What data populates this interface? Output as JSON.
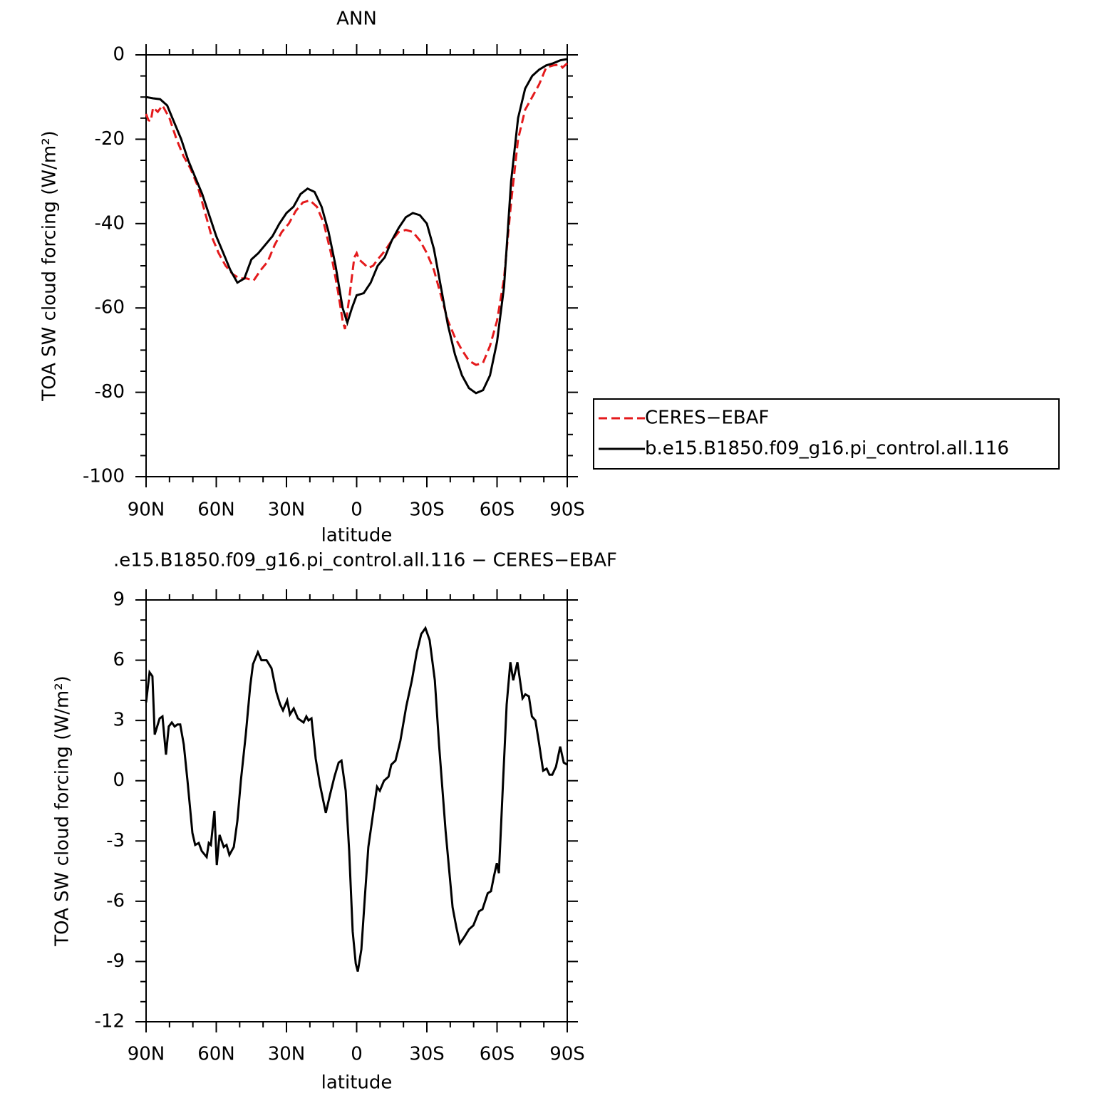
{
  "chart_data": [
    {
      "type": "line",
      "title": "ANN",
      "xlabel": "latitude",
      "ylabel": "TOA SW cloud forcing (W/m²)",
      "xlim": [
        90,
        -90
      ],
      "xticks": [
        {
          "value": 90,
          "label": "90N"
        },
        {
          "value": 60,
          "label": "60N"
        },
        {
          "value": 30,
          "label": "30N"
        },
        0,
        {
          "value": -30,
          "label": "30S"
        },
        {
          "value": -60,
          "label": "60S"
        },
        {
          "value": -90,
          "label": "90S"
        }
      ],
      "ylim": [
        -100,
        0
      ],
      "yticks": [
        -100,
        -80,
        -60,
        -40,
        -20,
        0
      ],
      "legend": true,
      "series": [
        {
          "name": "CERES−EBAF",
          "color": "#e41a1c",
          "style": "dashed",
          "x": [
            90,
            89,
            88,
            87,
            85,
            83,
            80,
            77,
            74,
            71,
            68,
            65,
            62,
            59,
            56,
            53,
            50,
            47,
            44,
            41,
            38,
            35,
            32,
            29,
            26,
            23,
            20,
            17,
            14,
            11,
            8,
            6,
            5,
            3,
            1,
            0,
            -1,
            -3,
            -5,
            -7,
            -9,
            -12,
            -15,
            -18,
            -21,
            -24,
            -27,
            -30,
            -33,
            -36,
            -39,
            -42,
            -45,
            -48,
            -51,
            -54,
            -57,
            -60,
            -63,
            -66,
            -69,
            -72,
            -75,
            -78,
            -81,
            -84,
            -87,
            -88,
            -90
          ],
          "values": [
            -14,
            -15.5,
            -15.7,
            -12.5,
            -13.5,
            -12,
            -15,
            -20,
            -24,
            -27,
            -31,
            -37,
            -43,
            -47,
            -50,
            -52,
            -53,
            -53,
            -53.5,
            -51,
            -49,
            -45,
            -42,
            -40,
            -37,
            -35,
            -34.5,
            -36,
            -40,
            -47,
            -56,
            -63,
            -65,
            -57,
            -48,
            -47,
            -48.5,
            -49.5,
            -50.5,
            -50,
            -48.5,
            -46.5,
            -44,
            -42,
            -41.5,
            -42,
            -44,
            -47,
            -51,
            -57,
            -63,
            -67,
            -70,
            -72.5,
            -73.5,
            -73,
            -69,
            -63,
            -53,
            -35,
            -20,
            -13,
            -10,
            -7,
            -3,
            -2.5,
            -2.3,
            -3,
            -2
          ]
        },
        {
          "name": "b.e15.B1850.f09_g16.pi_control.all.116",
          "color": "#000000",
          "style": "solid",
          "x": [
            90,
            87,
            84,
            81,
            78,
            75,
            72,
            69,
            66,
            63,
            60,
            57,
            54,
            51,
            48,
            45,
            42,
            39,
            36,
            33,
            30,
            27,
            24,
            21,
            18,
            15,
            12,
            9,
            6,
            4,
            2,
            0,
            -3,
            -6,
            -9,
            -12,
            -15,
            -18,
            -21,
            -24,
            -27,
            -30,
            -33,
            -36,
            -39,
            -42,
            -45,
            -48,
            -51,
            -54,
            -57,
            -60,
            -63,
            -66,
            -69,
            -72,
            -75,
            -78,
            -81,
            -84,
            -87,
            -90
          ],
          "values": [
            -10,
            -10.3,
            -10.5,
            -12,
            -16,
            -20,
            -25,
            -29,
            -33,
            -38,
            -43,
            -47,
            -51,
            -54,
            -53,
            -48.5,
            -47,
            -45,
            -43,
            -40,
            -37.5,
            -36,
            -33,
            -31.7,
            -32.5,
            -36,
            -42,
            -50,
            -60,
            -63.5,
            -60,
            -57,
            -56.5,
            -54,
            -50,
            -48,
            -44,
            -41,
            -38.5,
            -37.5,
            -38,
            -40,
            -46,
            -55,
            -64,
            -71,
            -76,
            -79,
            -80.2,
            -79.5,
            -76,
            -68,
            -55,
            -30,
            -15,
            -8,
            -5,
            -3.5,
            -2.5,
            -2,
            -1.3,
            -1
          ]
        }
      ]
    },
    {
      "type": "line",
      "title": ".e15.B1850.f09_g16.pi_control.all.116 − CERES−EBAF",
      "xlabel": "latitude",
      "ylabel": "TOA SW cloud forcing (W/m²)",
      "xlim": [
        90,
        -90
      ],
      "xticks": [
        {
          "value": 90,
          "label": "90N"
        },
        {
          "value": 60,
          "label": "60N"
        },
        {
          "value": 30,
          "label": "30N"
        },
        0,
        {
          "value": -30,
          "label": "30S"
        },
        {
          "value": -60,
          "label": "60S"
        },
        {
          "value": -90,
          "label": "90S"
        }
      ],
      "ylim": [
        -12,
        9
      ],
      "yticks": [
        -12,
        -9,
        -6,
        -3,
        0,
        3,
        6,
        9
      ],
      "legend": false,
      "series": [
        {
          "color": "#000000",
          "style": "solid",
          "x": [
            90,
            88.5,
            87.3,
            86.3,
            84.2,
            83,
            81.5,
            80.3,
            79,
            77.8,
            76.6,
            75.4,
            73.9,
            72.3,
            71.1,
            70.2,
            69,
            67.5,
            66.2,
            64.1,
            63.2,
            62.3,
            60.8,
            59.8,
            58.6,
            56.8,
            55.6,
            54.4,
            52.5,
            51,
            49.5,
            47.4,
            45.5,
            44.3,
            42.2,
            40.7,
            38.5,
            36.4,
            34.3,
            32.7,
            31.5,
            29.7,
            28.5,
            26.9,
            25.1,
            22.7,
            21.5,
            20.6,
            19.3,
            17.5,
            15.7,
            13.2,
            11.4,
            9.5,
            7.7,
            6.5,
            4.7,
            3.2,
            1.7,
            0.4,
            -0.5,
            -2,
            -3.5,
            -5,
            -7.2,
            -8.7,
            -9.9,
            -11.7,
            -13.6,
            -14.8,
            -16.6,
            -18.7,
            -21.2,
            -23.6,
            -25.7,
            -27.6,
            -29.4,
            -31.2,
            -33.4,
            -35.2,
            -38,
            -41,
            -42.6,
            -44.1,
            -45.9,
            -48,
            -49.9,
            -52.3,
            -53.8,
            -56,
            -57.4,
            -58.6,
            -59.9,
            -60.8,
            -62.6,
            -64.1,
            -65.7,
            -66.9,
            -68.7,
            -70.9,
            -72.1,
            -73.6,
            -74.9,
            -76.4,
            -77.9,
            -79.7,
            -81.2,
            -82.4,
            -83.6,
            -85.2,
            -87,
            -88.5,
            -90
          ],
          "values": [
            3.9,
            5.4,
            5.2,
            2.3,
            3.1,
            3.2,
            1.3,
            2.7,
            2.9,
            2.7,
            2.8,
            2.8,
            1.8,
            0,
            -1.5,
            -2.6,
            -3.2,
            -3.1,
            -3.5,
            -3.8,
            -3.1,
            -3.2,
            -1.5,
            -4.2,
            -2.7,
            -3.3,
            -3.2,
            -3.7,
            -3.3,
            -2,
            0,
            2.3,
            4.7,
            5.8,
            6.4,
            6,
            6,
            5.6,
            4.4,
            3.8,
            3.5,
            4,
            3.3,
            3.6,
            3.1,
            2.9,
            3.2,
            3,
            3.1,
            1.1,
            -0.2,
            -1.6,
            -0.7,
            0.2,
            0.9,
            1,
            -0.5,
            -3.5,
            -7.5,
            -9.1,
            -9.5,
            -8.4,
            -5.8,
            -3.3,
            -1.5,
            -0.3,
            -0.5,
            0,
            0.2,
            0.8,
            1,
            2,
            3.7,
            5,
            6.4,
            7.3,
            7.6,
            7,
            5,
            1.8,
            -2.5,
            -6.3,
            -7.3,
            -8.1,
            -7.8,
            -7.4,
            -7.2,
            -6.5,
            -6.4,
            -5.6,
            -5.5,
            -4.8,
            -4.1,
            -4.6,
            0,
            3.8,
            5.9,
            5,
            5.9,
            4.1,
            4.3,
            4.2,
            3.2,
            3,
            1.9,
            0.5,
            0.6,
            0.3,
            0.3,
            0.7,
            1.7,
            0.9,
            0.8
          ]
        }
      ]
    }
  ]
}
